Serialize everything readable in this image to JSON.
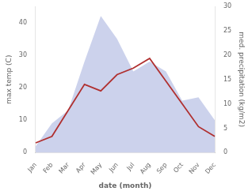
{
  "chart_data": {
    "type": "line",
    "categories": [
      "Jan",
      "Feb",
      "Mar",
      "Apr",
      "May",
      "Jun",
      "Jul",
      "Aug",
      "Sep",
      "Oct",
      "Nov",
      "Dec"
    ],
    "series": [
      {
        "type": "area",
        "color": "#aab4df",
        "values": [
          2,
          9,
          13,
          28,
          42,
          35,
          25,
          28,
          25,
          16,
          17,
          10
        ]
      },
      {
        "type": "line",
        "color": "#b03030",
        "values": [
          3,
          5,
          13,
          21,
          19,
          24,
          26,
          29,
          22,
          15,
          8,
          5
        ]
      }
    ],
    "xlabel": "date (month)",
    "ylabel": "max temp (C)",
    "y2label": "med. precipitation (kg/m2)",
    "ylim": [
      0,
      45
    ],
    "yticks": [
      0,
      10,
      20,
      30,
      40
    ],
    "y2lim": [
      0,
      30
    ],
    "y2ticks": [
      0,
      5,
      10,
      15,
      20,
      25,
      30
    ],
    "grid": false
  }
}
